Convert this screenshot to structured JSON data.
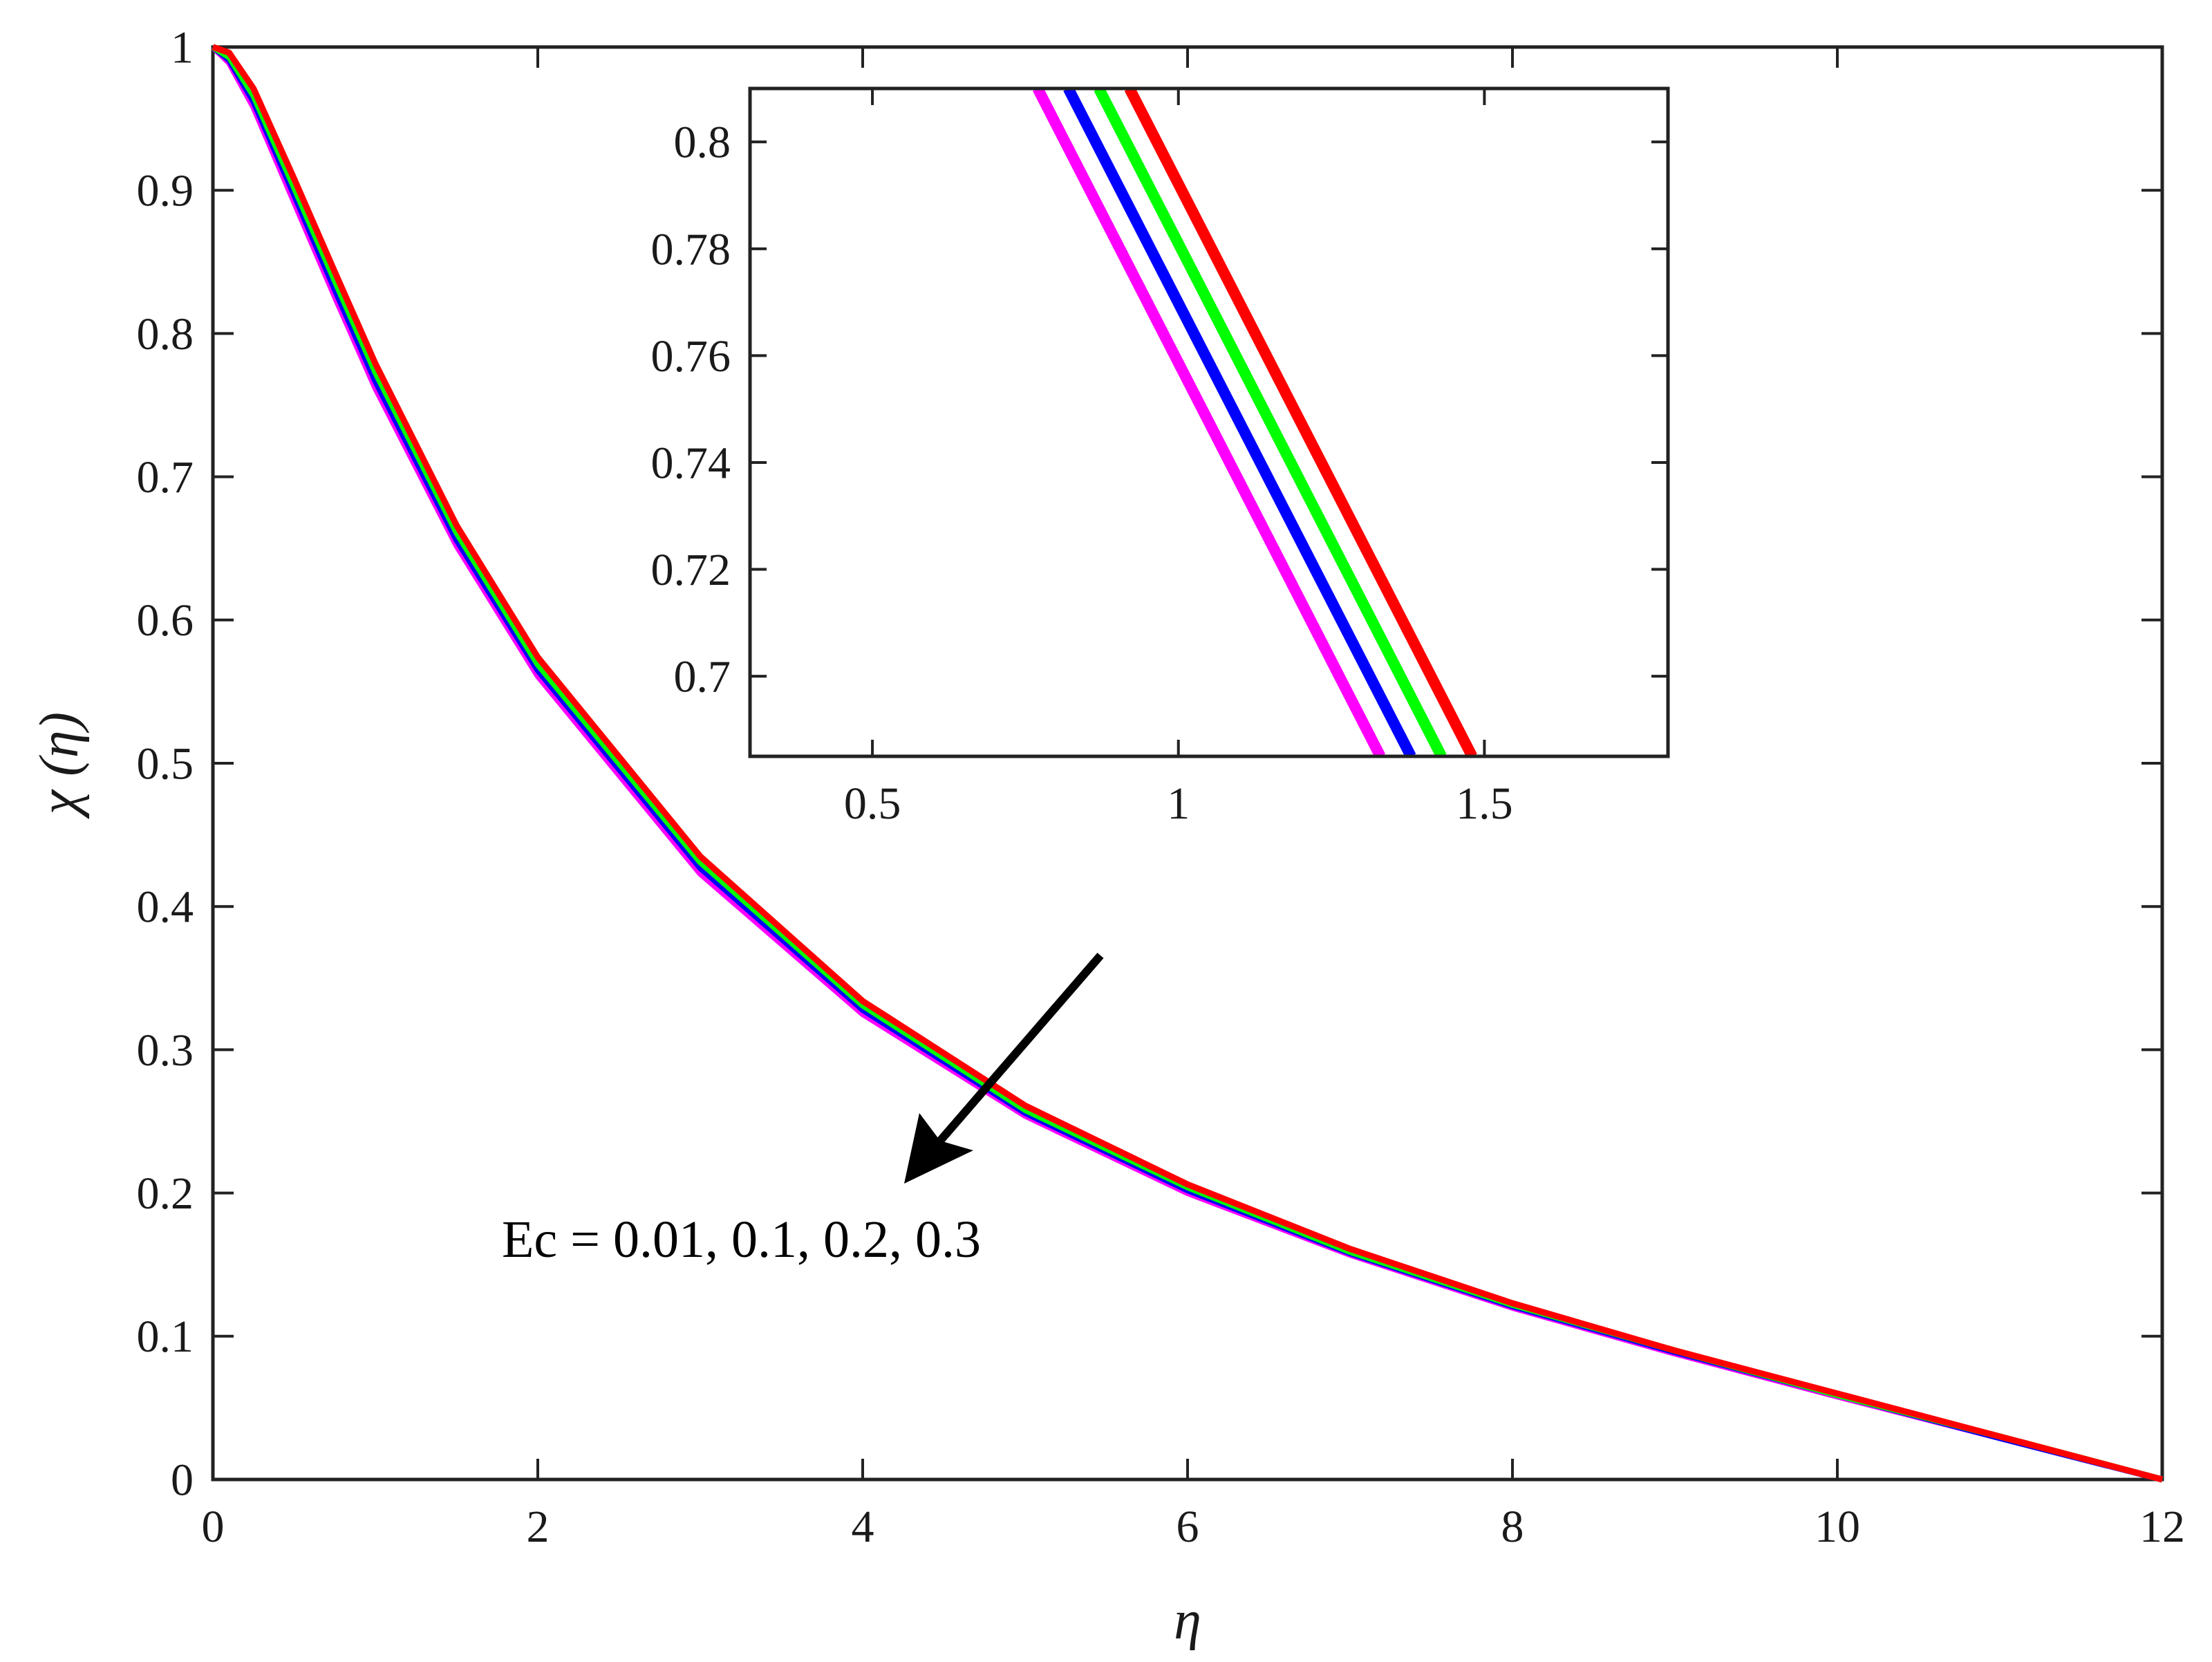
{
  "chart_data": [
    {
      "type": "line",
      "title": "",
      "xlabel": "η",
      "ylabel": "χ (η)",
      "xlim": [
        0,
        12
      ],
      "ylim": [
        0,
        1
      ],
      "xticks": [
        0,
        2,
        4,
        6,
        8,
        10,
        12
      ],
      "yticks": [
        0,
        0.1,
        0.2,
        0.3,
        0.4,
        0.5,
        0.6,
        0.7,
        0.8,
        0.9,
        1
      ],
      "xtick_labels": [
        "0",
        "2",
        "4",
        "6",
        "8",
        "10",
        "12"
      ],
      "ytick_labels": [
        "0",
        "0.1",
        "0.2",
        "0.3",
        "0.4",
        "0.5",
        "0.6",
        "0.7",
        "0.8",
        "0.9",
        "1"
      ],
      "grid": false,
      "annotation": "Ec = 0.01, 0.1, 0.2, 0.3",
      "series": [
        {
          "color": "#ff00ff",
          "x": [
            0,
            0.1,
            0.25,
            0.5,
            0.75,
            1,
            1.5,
            2,
            3,
            4,
            5,
            6,
            7,
            8,
            9,
            10,
            11,
            12
          ],
          "y": [
            1,
            0.989,
            0.958,
            0.892,
            0.826,
            0.762,
            0.652,
            0.561,
            0.423,
            0.325,
            0.254,
            0.2,
            0.157,
            0.12,
            0.088,
            0.058,
            0.029,
            0
          ]
        },
        {
          "color": "#0000ff",
          "x": [
            0,
            0.1,
            0.25,
            0.5,
            0.75,
            1,
            1.5,
            2,
            3,
            4,
            5,
            6,
            7,
            8,
            9,
            10,
            11,
            12
          ],
          "y": [
            1,
            0.991,
            0.962,
            0.897,
            0.831,
            0.767,
            0.656,
            0.565,
            0.427,
            0.328,
            0.256,
            0.202,
            0.158,
            0.121,
            0.089,
            0.059,
            0.029,
            0
          ]
        },
        {
          "color": "#00ff00",
          "x": [
            0,
            0.1,
            0.25,
            0.5,
            0.75,
            1,
            1.5,
            2,
            3,
            4,
            5,
            6,
            7,
            8,
            9,
            10,
            11,
            12
          ],
          "y": [
            1,
            0.993,
            0.966,
            0.902,
            0.837,
            0.773,
            0.661,
            0.569,
            0.431,
            0.331,
            0.258,
            0.204,
            0.159,
            0.122,
            0.09,
            0.059,
            0.03,
            0
          ]
        },
        {
          "color": "#ff0000",
          "x": [
            0,
            0.1,
            0.25,
            0.5,
            0.75,
            1,
            1.5,
            2,
            3,
            4,
            5,
            6,
            7,
            8,
            9,
            10,
            11,
            12
          ],
          "y": [
            1,
            0.996,
            0.971,
            0.908,
            0.843,
            0.779,
            0.666,
            0.574,
            0.435,
            0.334,
            0.261,
            0.206,
            0.161,
            0.123,
            0.09,
            0.06,
            0.03,
            0
          ]
        }
      ]
    },
    {
      "type": "line",
      "title": "",
      "xlim": [
        0.3,
        1.8
      ],
      "ylim": [
        0.685,
        0.81
      ],
      "xticks": [
        0.5,
        1,
        1.5
      ],
      "yticks": [
        0.7,
        0.72,
        0.74,
        0.76,
        0.78,
        0.8
      ],
      "xtick_labels": [
        "0.5",
        "1",
        "1.5"
      ],
      "ytick_labels": [
        "0.7",
        "0.72",
        "0.74",
        "0.76",
        "0.78",
        "0.8"
      ],
      "grid": false,
      "series": [
        {
          "color": "#ff00ff",
          "x": [
            0.77,
            1.33
          ],
          "y": [
            0.81,
            0.685
          ]
        },
        {
          "color": "#0000ff",
          "x": [
            0.82,
            1.38
          ],
          "y": [
            0.81,
            0.685
          ]
        },
        {
          "color": "#00ff00",
          "x": [
            0.87,
            1.43
          ],
          "y": [
            0.81,
            0.685
          ]
        },
        {
          "color": "#ff0000",
          "x": [
            0.92,
            1.48
          ],
          "y": [
            0.81,
            0.685
          ]
        }
      ]
    }
  ]
}
